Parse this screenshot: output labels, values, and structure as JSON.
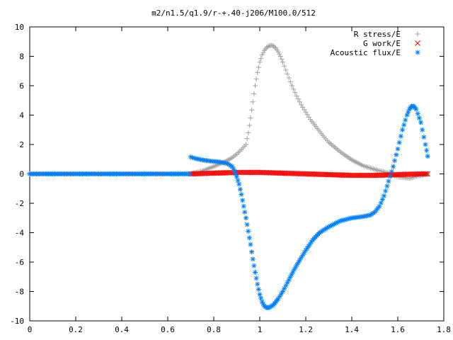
{
  "chart_data": {
    "type": "scatter",
    "title": "m2/n1.5/q1.9/r-+.40-j206/M100.0/512",
    "xlabel": "",
    "ylabel": "",
    "xlim": [
      0,
      1.8
    ],
    "ylim": [
      -10,
      10
    ],
    "x_ticks": [
      "0",
      "0.2",
      "0.4",
      "0.6",
      "0.8",
      "1",
      "1.2",
      "1.4",
      "1.6",
      "1.8"
    ],
    "y_ticks": [
      "10",
      "8",
      "6",
      "4",
      "2",
      "0",
      "-2",
      "-4",
      "-6",
      "-8",
      "-10"
    ],
    "grid": false,
    "legend_position": "top-right",
    "series": [
      {
        "name": "R stress/E",
        "marker": "+",
        "color": "#a0a0a0",
        "x": [
          0.7,
          0.75,
          0.8,
          0.85,
          0.88,
          0.9,
          0.92,
          0.94,
          0.95,
          0.96,
          0.97,
          0.98,
          0.99,
          1.0,
          1.01,
          1.02,
          1.03,
          1.04,
          1.05,
          1.06,
          1.07,
          1.08,
          1.09,
          1.1,
          1.12,
          1.14,
          1.16,
          1.18,
          1.2,
          1.22,
          1.25,
          1.28,
          1.3,
          1.35,
          1.4,
          1.45,
          1.5,
          1.55,
          1.6,
          1.65,
          1.7,
          1.73
        ],
        "values": [
          0.0,
          0.2,
          0.5,
          0.85,
          1.1,
          1.35,
          1.65,
          2.0,
          2.8,
          3.8,
          4.9,
          6.0,
          6.9,
          7.6,
          8.1,
          8.4,
          8.6,
          8.7,
          8.75,
          8.7,
          8.55,
          8.3,
          8.0,
          7.6,
          6.8,
          6.0,
          5.3,
          4.7,
          4.2,
          3.7,
          3.1,
          2.5,
          2.15,
          1.5,
          0.95,
          0.55,
          0.3,
          0.1,
          -0.2,
          -0.3,
          -0.1,
          0.0
        ]
      },
      {
        "name": "G work/E",
        "marker": "x",
        "color": "#ff0000",
        "x": [
          0.7,
          0.8,
          0.9,
          1.0,
          1.1,
          1.2,
          1.3,
          1.4,
          1.5,
          1.6,
          1.7,
          1.73
        ],
        "values": [
          0.0,
          0.05,
          0.1,
          0.1,
          0.05,
          0.0,
          -0.05,
          -0.1,
          -0.1,
          -0.05,
          0.0,
          0.0
        ]
      },
      {
        "name": "Acoustic flux/E",
        "marker": "*",
        "color": "#0080ff",
        "x": [
          0.0,
          0.1,
          0.2,
          0.3,
          0.4,
          0.5,
          0.6,
          0.695,
          0.7,
          0.72,
          0.75,
          0.78,
          0.8,
          0.83,
          0.86,
          0.88,
          0.89,
          0.9,
          0.91,
          0.92,
          0.93,
          0.94,
          0.95,
          0.96,
          0.97,
          0.98,
          0.99,
          1.0,
          1.01,
          1.02,
          1.03,
          1.04,
          1.05,
          1.06,
          1.07,
          1.08,
          1.1,
          1.12,
          1.15,
          1.18,
          1.2,
          1.23,
          1.26,
          1.3,
          1.35,
          1.4,
          1.45,
          1.48,
          1.5,
          1.52,
          1.54,
          1.56,
          1.58,
          1.6,
          1.62,
          1.64,
          1.65,
          1.66,
          1.67,
          1.68,
          1.7,
          1.72,
          1.73
        ],
        "values": [
          0.0,
          0.0,
          0.0,
          0.0,
          0.0,
          0.0,
          0.0,
          0.0,
          1.15,
          1.05,
          0.95,
          0.88,
          0.85,
          0.8,
          0.7,
          0.5,
          0.2,
          -0.2,
          -0.7,
          -1.4,
          -2.2,
          -3.0,
          -3.9,
          -4.8,
          -5.8,
          -6.7,
          -7.5,
          -8.2,
          -8.7,
          -9.0,
          -9.1,
          -9.1,
          -9.0,
          -8.9,
          -8.7,
          -8.5,
          -8.0,
          -7.4,
          -6.5,
          -5.7,
          -5.2,
          -4.5,
          -4.0,
          -3.6,
          -3.2,
          -3.0,
          -2.9,
          -2.8,
          -2.6,
          -2.2,
          -1.5,
          -0.5,
          0.5,
          1.7,
          3.0,
          4.0,
          4.4,
          4.6,
          4.6,
          4.4,
          3.5,
          2.0,
          1.2
        ]
      }
    ]
  }
}
